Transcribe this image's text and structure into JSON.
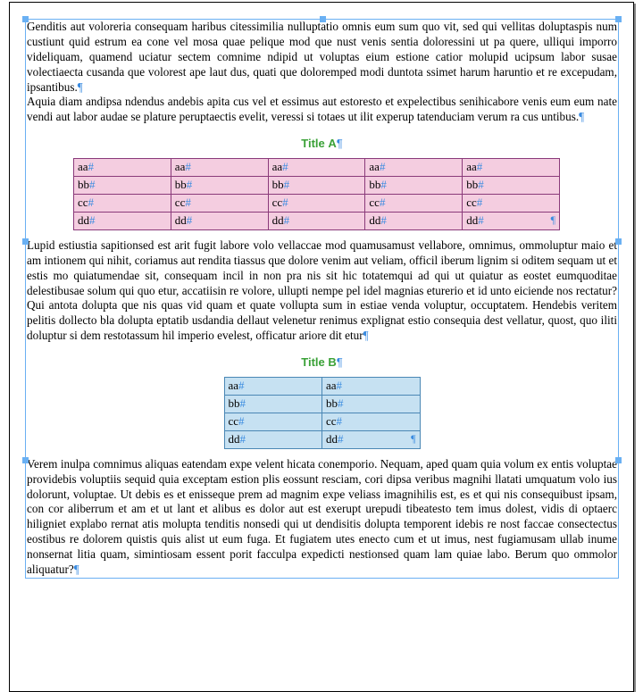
{
  "colors": {
    "frame_border": "#6ab0f3",
    "handle": "#6ab0f3",
    "hidden_char": "#3a8be0",
    "title": "#3aa137",
    "table_a_border": "#8a3a7a",
    "table_a_fill": "#f4cde0",
    "table_b_border": "#4a87b5",
    "table_b_fill": "#c6e1f2",
    "text": "#000000",
    "page_bg": "#ffffff"
  },
  "paragraphs": {
    "p1": "Genditis aut voloreria consequam haribus citessimilia nulluptatio omnis eum sum quo vit, sed qui vellitas doluptaspis num custiunt quid estrum ea cone vel mosa quae pelique mod que nust venis sentia doloressini ut pa quere, ulliqui imporro videliquam, quamend uciatur sectem comnime ndipid ut voluptas eium estione catior molupid ucipsum labor susae volectiaecta cusanda que volorest ape laut dus, quati que doloremped modi duntota ssimet harum haruntio et re excepudam, ipsantibus.",
    "p2": "Aquia diam andipsa ndendus andebis apita cus vel et essimus aut estoresto et expelectibus senihicabore venis eum eum nate vendi aut labor audae se plature peruptaectis evelit, veressi si totaes ut ilit experup tatenduciam verum ra cus untibus.",
    "p3": "Lupid estiustia sapitionsed est arit fugit labore volo vellaccae mod quamusamust vellabore, omnimus, ommoluptur maio et am intionem qui nihit, coriamus aut rendita tiassus que dolore venim aut veliam, officil iberum lignim si oditem sequam ut et estis mo quiatumendae sit, consequam incil in non pra nis sit hic totatemqui ad qui ut quiatur as eostet eumquoditae delestibusae solum qui quo etur, accatiisin re volore, ullupti nempe pel idel magnias eturerio et id unto eiciende nos rectatur? Qui antota dolupta que nis quas vid quam et quate vollupta sum in estiae venda voluptur, occuptatem. Hendebis veritem pelitis dollecto bla dolupta eptatib usdandia dellaut velenetur renimus explignat estio consequia dest vellatur, quost, quo iliti doluptur si dem restotassum hil imperio evelest, officatur ariore dit etur",
    "p4": "Verem inulpa comnimus aliquas eatendam expe velent hicata conemporio. Nequam, aped quam quia volum ex entis voluptae providebis voluptiis sequid quia exceptam estion plis eossunt resciam, cori dipsa veribus magnihi llatati umquatum volo ius dolorunt, voluptae. Ut debis es et enisseque prem ad magnim expe veliass imagnihilis est, es et qui nis consequibust ipsam, con cor aliberrum et am et ut lant et alibus es dolor aut est exerupt urepudi tibeatesto tem imus dolest, vidis di optaerc hiligniet explabo rernat atis molupta tenditis nonsedi qui ut dendisitis dolupta temporent idebis re nost faccae consectectus eostibus re dolorem quistis quis alist ut eum fuga. Et fugiatem utes enecto cum et ut imus, nest fugiamusam ullab inume nonsernat litia quam, simintiosam essent porit facculpa expedicti nestionsed quam lam quiae labo. Berum quo ommolor aliquatur?"
  },
  "titles": {
    "a": "Title A",
    "b": "Title B"
  },
  "tableA": {
    "cols": 5,
    "rows": [
      [
        "aa",
        "aa",
        "aa",
        "aa",
        "aa"
      ],
      [
        "bb",
        "bb",
        "bb",
        "bb",
        "bb"
      ],
      [
        "cc",
        "cc",
        "cc",
        "cc",
        "cc"
      ],
      [
        "dd",
        "dd",
        "dd",
        "dd",
        "dd"
      ]
    ]
  },
  "tableB": {
    "cols": 2,
    "rows": [
      [
        "aa",
        "aa"
      ],
      [
        "bb",
        "bb"
      ],
      [
        "cc",
        "cc"
      ],
      [
        "dd",
        "dd"
      ]
    ]
  },
  "hidden_chars": {
    "pilcrow": "¶",
    "hash": "#",
    "hyphen_mark": "˜"
  }
}
